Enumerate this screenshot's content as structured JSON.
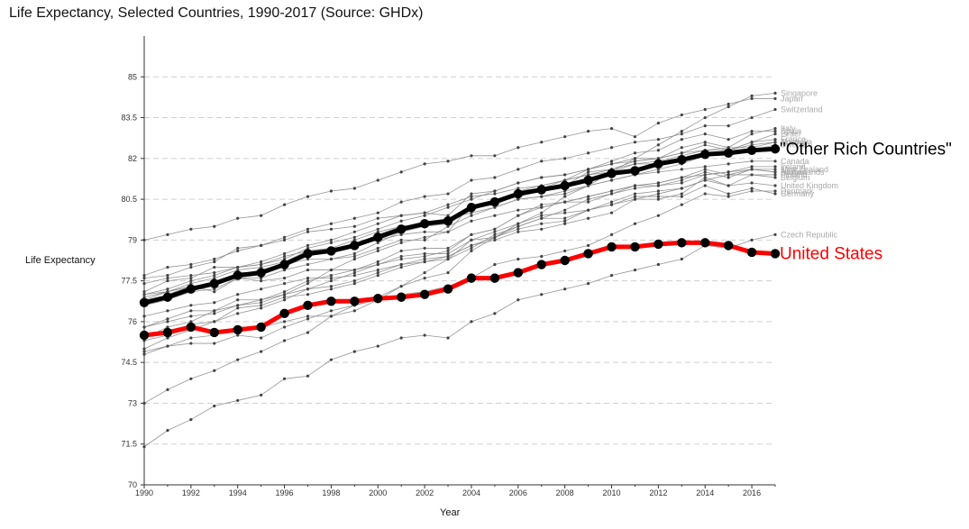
{
  "title": "Life Expectancy, Selected Countries, 1990-2017 (Source: GHDx)",
  "chart_data": {
    "type": "line",
    "title": "Life Expectancy, Selected Countries, 1990-2017 (Source: GHDx)",
    "xlabel": "Year",
    "ylabel": "Life Expectancy",
    "xlim": [
      1990,
      2017
    ],
    "ylim": [
      70,
      86.5
    ],
    "xticks": [
      1990,
      1992,
      1994,
      1996,
      1998,
      2000,
      2002,
      2004,
      2006,
      2008,
      2010,
      2012,
      2014,
      2016
    ],
    "yticks": [
      70,
      71.5,
      73,
      74.5,
      76,
      77.5,
      79,
      80.5,
      82,
      83.5,
      85
    ],
    "grid": true,
    "x": [
      1990,
      1991,
      1992,
      1993,
      1994,
      1995,
      1996,
      1997,
      1998,
      1999,
      2000,
      2001,
      2002,
      2003,
      2004,
      2005,
      2006,
      2007,
      2008,
      2009,
      2010,
      2011,
      2012,
      2013,
      2014,
      2015,
      2016,
      2017
    ],
    "highlight_series": [
      {
        "name": "\"Other Rich Countries\"",
        "color": "#000000",
        "values": [
          76.7,
          76.9,
          77.2,
          77.4,
          77.7,
          77.8,
          78.1,
          78.5,
          78.6,
          78.8,
          79.1,
          79.4,
          79.6,
          79.7,
          80.2,
          80.4,
          80.7,
          80.85,
          81.0,
          81.2,
          81.45,
          81.55,
          81.8,
          81.95,
          82.15,
          82.2,
          82.3,
          82.35
        ]
      },
      {
        "name": "United States",
        "color": "#ff0000",
        "values": [
          75.5,
          75.6,
          75.8,
          75.6,
          75.7,
          75.8,
          76.3,
          76.6,
          76.75,
          76.75,
          76.85,
          76.9,
          77.0,
          77.2,
          77.6,
          77.6,
          77.8,
          78.1,
          78.25,
          78.5,
          78.75,
          78.75,
          78.85,
          78.9,
          78.9,
          78.8,
          78.55,
          78.5
        ]
      }
    ],
    "series": [
      {
        "name": "Singapore",
        "values": [
          73.0,
          73.5,
          73.9,
          74.2,
          74.6,
          74.9,
          75.3,
          75.6,
          76.2,
          76.6,
          76.9,
          77.3,
          77.6,
          77.8,
          78.6,
          79.1,
          79.6,
          80.0,
          80.6,
          81.0,
          81.5,
          82.0,
          82.5,
          83.0,
          83.5,
          83.9,
          84.3,
          84.4
        ]
      },
      {
        "name": "Japan",
        "values": [
          79.0,
          79.2,
          79.4,
          79.5,
          79.8,
          79.9,
          80.3,
          80.6,
          80.8,
          80.9,
          81.2,
          81.5,
          81.8,
          81.9,
          82.1,
          82.1,
          82.4,
          82.6,
          82.8,
          83.0,
          83.1,
          82.8,
          83.3,
          83.6,
          83.8,
          84.0,
          84.2,
          84.2
        ]
      },
      {
        "name": "Switzerland",
        "values": [
          77.7,
          78.0,
          78.1,
          78.3,
          78.6,
          78.8,
          79.1,
          79.4,
          79.6,
          79.8,
          80.0,
          80.4,
          80.6,
          80.7,
          81.2,
          81.3,
          81.6,
          81.9,
          82.0,
          82.2,
          82.4,
          82.6,
          82.7,
          82.9,
          83.2,
          83.2,
          83.5,
          83.8
        ]
      },
      {
        "name": "Italy",
        "values": [
          77.0,
          77.2,
          77.5,
          77.7,
          78.0,
          78.2,
          78.5,
          78.8,
          79.0,
          79.3,
          79.6,
          79.9,
          80.0,
          79.9,
          80.7,
          80.8,
          81.1,
          81.3,
          81.4,
          81.6,
          81.8,
          82.0,
          82.0,
          82.4,
          82.6,
          82.4,
          82.9,
          83.1
        ]
      },
      {
        "name": "Spain",
        "values": [
          76.9,
          77.1,
          77.4,
          77.6,
          77.9,
          78.0,
          78.2,
          78.6,
          78.7,
          78.8,
          79.2,
          79.5,
          79.6,
          79.7,
          80.2,
          80.3,
          80.8,
          80.9,
          81.2,
          81.6,
          81.9,
          82.2,
          82.3,
          82.7,
          82.9,
          82.7,
          83.0,
          83.0
        ]
      },
      {
        "name": "Israel",
        "values": [
          76.6,
          76.8,
          77.1,
          77.2,
          77.6,
          77.6,
          77.9,
          78.1,
          78.3,
          78.5,
          78.9,
          79.3,
          79.5,
          79.6,
          80.1,
          80.4,
          80.6,
          80.8,
          81.0,
          81.5,
          81.6,
          81.8,
          81.9,
          82.1,
          82.3,
          82.3,
          82.6,
          82.9
        ]
      },
      {
        "name": "France",
        "values": [
          76.8,
          77.1,
          77.3,
          77.4,
          77.7,
          77.9,
          78.1,
          78.4,
          78.6,
          78.8,
          79.0,
          79.2,
          79.3,
          79.3,
          80.3,
          80.3,
          80.8,
          81.0,
          81.2,
          81.4,
          81.6,
          81.9,
          82.0,
          82.2,
          82.5,
          82.3,
          82.6,
          82.7
        ]
      },
      {
        "name": "Sweden",
        "values": [
          77.6,
          77.7,
          78.0,
          78.2,
          78.7,
          78.8,
          79.0,
          79.3,
          79.4,
          79.5,
          79.8,
          79.9,
          80.0,
          80.3,
          80.6,
          80.7,
          80.9,
          81.0,
          81.2,
          81.4,
          81.5,
          81.8,
          81.8,
          81.9,
          82.2,
          82.1,
          82.3,
          82.5
        ]
      },
      {
        "name": "Australia",
        "values": [
          77.1,
          77.5,
          77.6,
          78.0,
          78.0,
          78.1,
          78.3,
          78.7,
          78.9,
          79.1,
          79.4,
          79.7,
          79.9,
          80.2,
          80.5,
          80.8,
          81.1,
          81.3,
          81.4,
          81.6,
          81.8,
          81.9,
          82.0,
          82.2,
          82.3,
          82.4,
          82.4,
          82.6
        ]
      },
      {
        "name": "Norway",
        "values": [
          76.6,
          77.0,
          77.3,
          77.3,
          77.8,
          77.8,
          78.1,
          78.3,
          78.3,
          78.4,
          78.7,
          79.0,
          79.0,
          79.5,
          79.9,
          80.2,
          80.5,
          80.6,
          80.7,
          81.0,
          81.2,
          81.4,
          81.6,
          81.8,
          82.1,
          82.3,
          82.5,
          82.6
        ]
      },
      {
        "name": "Canada",
        "values": [
          77.4,
          77.6,
          77.7,
          77.8,
          78.0,
          78.1,
          78.4,
          78.6,
          78.7,
          79.0,
          79.3,
          79.5,
          79.6,
          79.8,
          80.0,
          80.2,
          80.5,
          80.6,
          80.8,
          81.0,
          81.2,
          81.4,
          81.5,
          81.6,
          81.7,
          81.8,
          81.9,
          81.9
        ]
      },
      {
        "name": "Ireland",
        "values": [
          74.9,
          75.1,
          75.4,
          75.5,
          75.8,
          75.8,
          76.0,
          76.2,
          76.2,
          76.4,
          76.8,
          77.3,
          77.8,
          78.3,
          78.7,
          79.2,
          79.5,
          79.8,
          80.1,
          80.5,
          80.7,
          80.9,
          81.0,
          81.1,
          81.4,
          81.5,
          81.7,
          81.7
        ]
      },
      {
        "name": "New Zealand",
        "values": [
          75.4,
          75.8,
          76.0,
          76.4,
          76.6,
          76.7,
          77.0,
          77.4,
          77.9,
          78.3,
          78.6,
          78.9,
          79.1,
          79.3,
          79.7,
          79.9,
          80.1,
          80.2,
          80.4,
          80.6,
          80.8,
          81.0,
          81.1,
          81.3,
          81.4,
          81.5,
          81.6,
          81.6
        ]
      },
      {
        "name": "Netherlands",
        "values": [
          77.0,
          77.1,
          77.3,
          77.1,
          77.6,
          77.5,
          77.6,
          77.9,
          77.9,
          77.9,
          78.1,
          78.3,
          78.4,
          78.6,
          79.2,
          79.4,
          79.9,
          80.3,
          80.4,
          80.6,
          80.8,
          81.0,
          81.1,
          81.3,
          81.6,
          81.4,
          81.6,
          81.5
        ]
      },
      {
        "name": "Austria",
        "values": [
          75.8,
          76.0,
          76.2,
          76.3,
          76.6,
          76.8,
          77.1,
          77.5,
          77.7,
          77.9,
          78.2,
          78.6,
          78.7,
          78.7,
          79.2,
          79.4,
          79.9,
          80.2,
          80.4,
          80.4,
          80.7,
          81.0,
          81.0,
          81.2,
          81.5,
          81.3,
          81.6,
          81.5
        ]
      },
      {
        "name": "Finland",
        "values": [
          75.0,
          75.4,
          75.7,
          76.0,
          76.5,
          76.6,
          76.9,
          77.0,
          77.2,
          77.4,
          77.7,
          78.0,
          78.2,
          78.4,
          78.8,
          79.0,
          79.3,
          79.4,
          79.6,
          79.8,
          80.0,
          80.5,
          80.7,
          80.9,
          81.2,
          81.4,
          81.4,
          81.4
        ]
      },
      {
        "name": "Belgium",
        "values": [
          76.2,
          76.4,
          76.6,
          76.7,
          77.0,
          77.2,
          77.4,
          77.6,
          77.6,
          77.7,
          77.9,
          78.1,
          78.2,
          78.3,
          79.0,
          79.1,
          79.5,
          79.8,
          79.8,
          80.1,
          80.3,
          80.5,
          80.5,
          80.7,
          81.3,
          81.0,
          81.4,
          81.3
        ]
      },
      {
        "name": "United Kingdom",
        "values": [
          75.8,
          76.1,
          76.4,
          76.4,
          76.8,
          76.8,
          77.0,
          77.2,
          77.3,
          77.5,
          77.8,
          78.1,
          78.3,
          78.4,
          78.8,
          79.1,
          79.4,
          79.6,
          79.7,
          80.1,
          80.4,
          80.7,
          80.8,
          80.9,
          81.2,
          81.0,
          81.1,
          81.0
        ]
      },
      {
        "name": "Denmark",
        "values": [
          74.8,
          75.1,
          75.2,
          75.2,
          75.5,
          75.4,
          75.8,
          76.1,
          76.4,
          76.6,
          76.8,
          77.0,
          77.1,
          77.3,
          77.6,
          78.1,
          78.3,
          78.4,
          78.6,
          78.8,
          79.2,
          79.6,
          79.9,
          80.3,
          80.7,
          80.6,
          80.8,
          80.8
        ]
      },
      {
        "name": "Germany",
        "values": [
          75.3,
          75.5,
          75.9,
          76.0,
          76.3,
          76.5,
          76.8,
          77.2,
          77.5,
          77.8,
          78.1,
          78.4,
          78.5,
          78.5,
          79.0,
          79.3,
          79.6,
          79.9,
          80.0,
          80.1,
          80.3,
          80.6,
          80.6,
          80.6,
          81.0,
          80.7,
          80.9,
          80.7
        ]
      },
      {
        "name": "Czech Republic",
        "values": [
          71.4,
          72.0,
          72.4,
          72.9,
          73.1,
          73.3,
          73.9,
          74.0,
          74.6,
          74.9,
          75.1,
          75.4,
          75.5,
          75.4,
          76.0,
          76.3,
          76.8,
          77.0,
          77.2,
          77.4,
          77.7,
          77.9,
          78.1,
          78.3,
          78.8,
          78.7,
          79.0,
          79.2
        ]
      }
    ]
  }
}
